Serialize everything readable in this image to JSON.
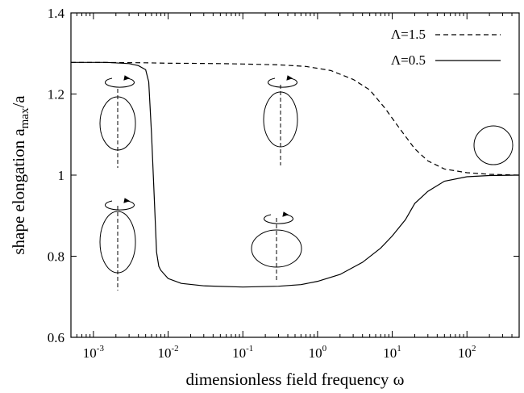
{
  "chart_data": {
    "type": "line",
    "xscale": "log",
    "xlim": [
      0.0005,
      500
    ],
    "ylim": [
      0.6,
      1.4
    ],
    "xlabel": "dimensionless  field frequency ω",
    "ylabel": "shape elongation a_max/a",
    "ylabel_parts": {
      "main": "shape elongation a",
      "sub": "max",
      "tail": "/a"
    },
    "x_ticks": [
      {
        "value": 0.001,
        "base": "10",
        "exp": "-3"
      },
      {
        "value": 0.01,
        "base": "10",
        "exp": "-2"
      },
      {
        "value": 0.1,
        "base": "10",
        "exp": "-1"
      },
      {
        "value": 1,
        "base": "10",
        "exp": "0"
      },
      {
        "value": 10,
        "base": "10",
        "exp": "1"
      },
      {
        "value": 100,
        "base": "10",
        "exp": "2"
      }
    ],
    "y_ticks": [
      {
        "value": 0.6,
        "label": "0.6"
      },
      {
        "value": 0.8,
        "label": "0.8"
      },
      {
        "value": 1.0,
        "label": "1"
      },
      {
        "value": 1.2,
        "label": "1.2"
      },
      {
        "value": 1.4,
        "label": "1.4"
      }
    ],
    "grid": false,
    "legend_position": "top-right",
    "series": [
      {
        "name": "Λ=1.5",
        "style": "dashed",
        "points": [
          [
            0.0005,
            1.278
          ],
          [
            0.001,
            1.278
          ],
          [
            0.005,
            1.277
          ],
          [
            0.01,
            1.276
          ],
          [
            0.05,
            1.275
          ],
          [
            0.1,
            1.274
          ],
          [
            0.3,
            1.272
          ],
          [
            0.7,
            1.268
          ],
          [
            1.5,
            1.258
          ],
          [
            3,
            1.236
          ],
          [
            5,
            1.21
          ],
          [
            8,
            1.165
          ],
          [
            12,
            1.12
          ],
          [
            20,
            1.065
          ],
          [
            30,
            1.035
          ],
          [
            50,
            1.015
          ],
          [
            100,
            1.006
          ],
          [
            200,
            1.002
          ],
          [
            500,
            1.0
          ]
        ]
      },
      {
        "name": "Λ=0.5",
        "style": "solid",
        "points": [
          [
            0.0005,
            1.278
          ],
          [
            0.0015,
            1.278
          ],
          [
            0.003,
            1.275
          ],
          [
            0.004,
            1.27
          ],
          [
            0.005,
            1.26
          ],
          [
            0.0055,
            1.23
          ],
          [
            0.006,
            1.1
          ],
          [
            0.0065,
            0.95
          ],
          [
            0.007,
            0.81
          ],
          [
            0.0075,
            0.775
          ],
          [
            0.008,
            0.765
          ],
          [
            0.01,
            0.745
          ],
          [
            0.015,
            0.733
          ],
          [
            0.03,
            0.727
          ],
          [
            0.1,
            0.724
          ],
          [
            0.3,
            0.726
          ],
          [
            0.6,
            0.73
          ],
          [
            1,
            0.738
          ],
          [
            2,
            0.755
          ],
          [
            4,
            0.785
          ],
          [
            7,
            0.82
          ],
          [
            10,
            0.85
          ],
          [
            15,
            0.89
          ],
          [
            20,
            0.93
          ],
          [
            30,
            0.96
          ],
          [
            50,
            0.985
          ],
          [
            100,
            0.996
          ],
          [
            200,
            0.999
          ],
          [
            500,
            1.0
          ]
        ]
      }
    ]
  }
}
